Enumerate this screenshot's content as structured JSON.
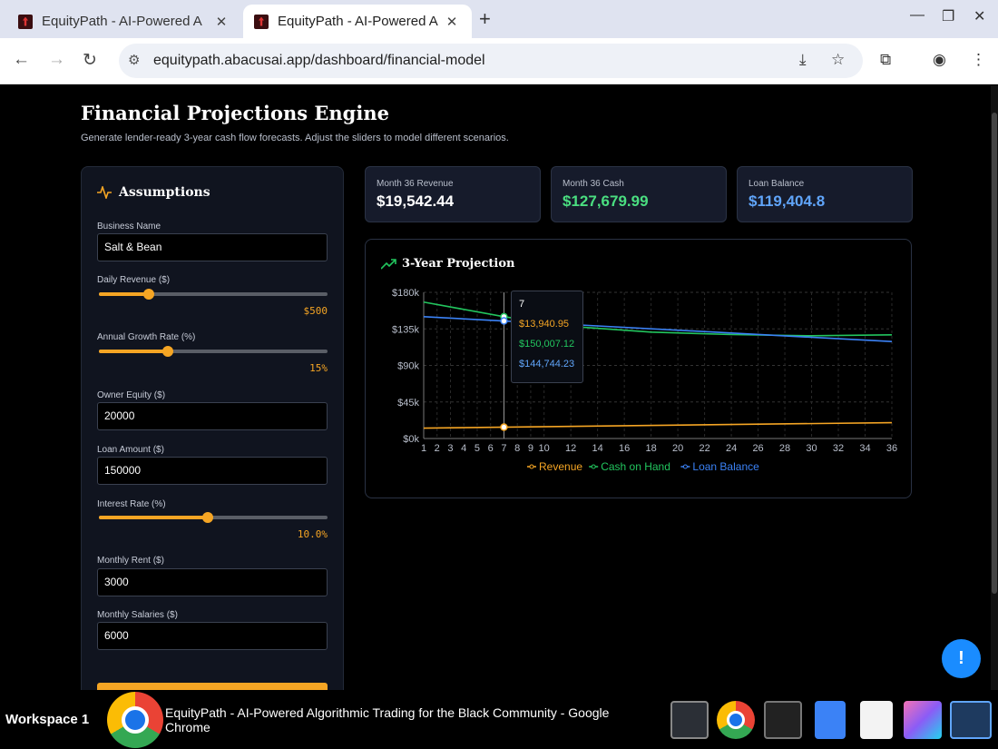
{
  "browser": {
    "tabs": [
      {
        "title": "EquityPath - AI-Powered A",
        "active": false
      },
      {
        "title": "EquityPath - AI-Powered A",
        "active": true
      }
    ],
    "new_tab": "+",
    "url": "equitypath.abacusai.app/dashboard/financial-model"
  },
  "page": {
    "title": "Financial Projections Engine",
    "subtitle": "Generate lender-ready 3-year cash flow forecasts. Adjust the sliders to model different scenarios."
  },
  "assumptions": {
    "heading": "Assumptions",
    "business_name_label": "Business Name",
    "business_name_value": "Salt & Bean",
    "daily_revenue_label": "Daily Revenue ($)",
    "daily_revenue_display": "$500",
    "daily_revenue_level": 0.22,
    "growth_label": "Annual Growth Rate (%)",
    "growth_display": "15%",
    "growth_level": 0.3,
    "owner_equity_label": "Owner Equity ($)",
    "owner_equity_value": "20000",
    "loan_amount_label": "Loan Amount ($)",
    "loan_amount_value": "150000",
    "interest_label": "Interest Rate (%)",
    "interest_display": "10.0%",
    "interest_level": 0.475,
    "rent_label": "Monthly Rent ($)",
    "rent_value": "3000",
    "salaries_label": "Monthly Salaries ($)",
    "salaries_value": "6000"
  },
  "kpis": [
    {
      "label": "Month 36 Revenue",
      "value": "$19,542.44",
      "color": "#ffffff"
    },
    {
      "label": "Month 36 Cash",
      "value": "$127,679.99",
      "color": "#4ade80"
    },
    {
      "label": "Loan Balance",
      "value": "$119,404.8",
      "color": "#60a5fa"
    }
  ],
  "chart_heading": "3-Year Projection",
  "chart_data": {
    "type": "line",
    "x": [
      1,
      2,
      3,
      4,
      5,
      6,
      7,
      8,
      9,
      10,
      11,
      12,
      13,
      14,
      15,
      16,
      17,
      18,
      19,
      20,
      21,
      22,
      23,
      24,
      25,
      26,
      27,
      28,
      29,
      30,
      31,
      32,
      33,
      34,
      35,
      36
    ],
    "xticks": [
      "1",
      "2",
      "3",
      "4",
      "5",
      "6",
      "7",
      "8",
      "9",
      "10",
      "12",
      "14",
      "16",
      "18",
      "20",
      "22",
      "24",
      "26",
      "28",
      "30",
      "32",
      "34",
      "36"
    ],
    "yticks": [
      "$0k",
      "$45k",
      "$90k",
      "$135k",
      "$180k"
    ],
    "ylim": [
      0,
      180000
    ],
    "series": [
      {
        "name": "Revenue",
        "color": "#f5a524",
        "start": 12800,
        "end": 19542.44,
        "marker_value": 13940.95
      },
      {
        "name": "Cash on Hand",
        "color": "#22c55e",
        "points": [
          [
            1,
            168000
          ],
          [
            7,
            150007.12
          ],
          [
            12,
            138000
          ],
          [
            18,
            131000
          ],
          [
            24,
            128000
          ],
          [
            30,
            126500
          ],
          [
            36,
            127679.99
          ]
        ]
      },
      {
        "name": "Loan Balance",
        "color": "#3b82f6",
        "points": [
          [
            1,
            150000
          ],
          [
            7,
            144744.23
          ],
          [
            36,
            119404.8
          ]
        ]
      }
    ],
    "tooltip": {
      "x_label": "7",
      "values": [
        "$13,940.95",
        "$150,007.12",
        "$144,744.23"
      ]
    }
  },
  "taskbar": {
    "workspace": "Workspace 1",
    "window_title": "EquityPath - AI-Powered Algorithmic Trading for the Black Community - Google Chrome"
  }
}
